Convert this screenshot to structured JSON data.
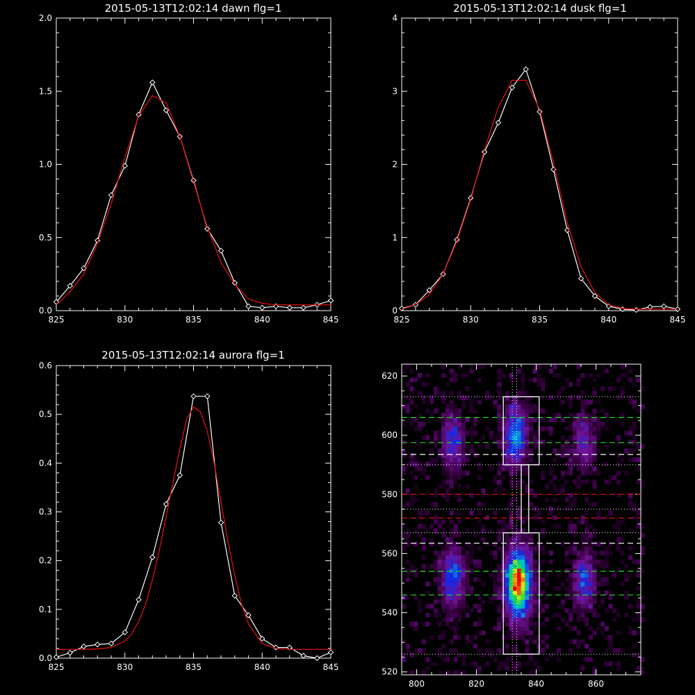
{
  "colors": {
    "background": "#000000",
    "axes": "#ffffff",
    "data_line": "#ffffff",
    "fit_line": "#dd1111",
    "box": "#ffffff",
    "green_dash": "#22dd22",
    "red_dash": "#dd1111",
    "white_dash": "#ffffff"
  },
  "chart_data": [
    {
      "type": "line",
      "title": "2015-05-13T12:02:14 dawn flg=1",
      "xlim": [
        825,
        845
      ],
      "ylim": [
        0.0,
        2.0
      ],
      "xticks": [
        825,
        830,
        835,
        840,
        845
      ],
      "xtick_labels": [
        "825",
        "830",
        "835",
        "840",
        "845"
      ],
      "yticks": [
        0.0,
        0.5,
        1.0,
        1.5,
        2.0
      ],
      "ytick_labels": [
        "0.0",
        "0.5",
        "1.0",
        "1.5",
        "2.0"
      ],
      "series": [
        {
          "x": [
            825,
            826,
            827,
            828,
            829,
            830,
            831,
            832,
            833,
            834,
            835,
            836,
            837,
            838,
            839,
            840,
            841,
            842,
            843,
            844,
            845
          ],
          "y": [
            0.06,
            0.17,
            0.29,
            0.48,
            0.79,
            0.99,
            1.34,
            1.56,
            1.37,
            1.19,
            0.89,
            0.56,
            0.41,
            0.19,
            0.03,
            0.02,
            0.03,
            0.02,
            0.02,
            0.04,
            0.07
          ],
          "marker": "diamond"
        },
        {
          "x": [
            825,
            826,
            827,
            828,
            829,
            830,
            831,
            832,
            833,
            834,
            835,
            836,
            837,
            838,
            839,
            840,
            841,
            842,
            843,
            844,
            845
          ],
          "y": [
            0.04,
            0.13,
            0.25,
            0.46,
            0.73,
            1.05,
            1.33,
            1.47,
            1.42,
            1.19,
            0.88,
            0.57,
            0.33,
            0.18,
            0.08,
            0.05,
            0.04,
            0.04,
            0.04,
            0.04,
            0.04
          ],
          "role": "fit"
        }
      ]
    },
    {
      "type": "line",
      "title": "2015-05-13T12:02:14 dusk flg=1",
      "xlim": [
        825,
        845
      ],
      "ylim": [
        0,
        4
      ],
      "xticks": [
        825,
        830,
        835,
        840,
        845
      ],
      "xtick_labels": [
        "825",
        "830",
        "835",
        "840",
        "845"
      ],
      "yticks": [
        0,
        1,
        2,
        3,
        4
      ],
      "ytick_labels": [
        "0",
        "1",
        "2",
        "3",
        "4"
      ],
      "series": [
        {
          "x": [
            825,
            826,
            827,
            828,
            829,
            830,
            831,
            832,
            833,
            834,
            835,
            836,
            837,
            838,
            839,
            840,
            841,
            842,
            843,
            844,
            845
          ],
          "y": [
            0.03,
            0.08,
            0.28,
            0.5,
            0.97,
            1.54,
            2.17,
            2.57,
            3.05,
            3.3,
            2.72,
            1.93,
            1.1,
            0.44,
            0.2,
            0.06,
            0.02,
            0.01,
            0.05,
            0.06,
            0.02
          ],
          "marker": "diamond"
        },
        {
          "x": [
            825,
            826,
            827,
            828,
            829,
            830,
            831,
            832,
            833,
            834,
            835,
            836,
            837,
            838,
            839,
            840,
            841,
            842,
            843,
            844,
            845
          ],
          "y": [
            0.02,
            0.08,
            0.22,
            0.5,
            0.95,
            1.52,
            2.2,
            2.78,
            3.15,
            3.15,
            2.75,
            2.02,
            1.2,
            0.6,
            0.25,
            0.08,
            0.03,
            0.02,
            0.02,
            0.02,
            0.02
          ],
          "role": "fit"
        }
      ]
    },
    {
      "type": "line",
      "title": "2015-05-13T12:02:14 aurora flg=1",
      "xlim": [
        825,
        845
      ],
      "ylim": [
        0.0,
        0.6
      ],
      "xticks": [
        825,
        830,
        835,
        840,
        845
      ],
      "xtick_labels": [
        "825",
        "830",
        "835",
        "840",
        "845"
      ],
      "yticks": [
        0.0,
        0.1,
        0.2,
        0.3,
        0.4,
        0.5,
        0.6
      ],
      "ytick_labels": [
        "0.0",
        "0.1",
        "0.2",
        "0.3",
        "0.4",
        "0.5",
        "0.6"
      ],
      "series": [
        {
          "x": [
            825,
            826,
            827,
            828,
            829,
            830,
            831,
            832,
            833,
            834,
            835,
            836,
            837,
            838,
            839,
            840,
            841,
            842,
            843,
            844,
            845
          ],
          "y": [
            0.002,
            0.011,
            0.024,
            0.028,
            0.03,
            0.053,
            0.12,
            0.207,
            0.316,
            0.375,
            0.537,
            0.537,
            0.278,
            0.128,
            0.088,
            0.04,
            0.022,
            0.022,
            0.005,
            0.0,
            0.012
          ],
          "marker": "diamond"
        },
        {
          "x": [
            825,
            826,
            827,
            828,
            829,
            830,
            830.5,
            831,
            831.5,
            832,
            832.5,
            833,
            833.5,
            834,
            834.5,
            835,
            835.5,
            836,
            836.5,
            837,
            837.5,
            838,
            838.5,
            839,
            840,
            841,
            842,
            843,
            844,
            845
          ],
          "y": [
            0.018,
            0.018,
            0.018,
            0.019,
            0.022,
            0.035,
            0.05,
            0.075,
            0.11,
            0.16,
            0.22,
            0.29,
            0.36,
            0.43,
            0.49,
            0.515,
            0.505,
            0.465,
            0.4,
            0.32,
            0.24,
            0.17,
            0.11,
            0.07,
            0.03,
            0.02,
            0.018,
            0.018,
            0.018,
            0.018
          ],
          "role": "fit"
        }
      ]
    },
    {
      "type": "heatmap",
      "title": "",
      "xlim": [
        795,
        875
      ],
      "ylim": [
        519,
        624
      ],
      "xticks": [
        800,
        820,
        840,
        860
      ],
      "xtick_labels": [
        "800",
        "820",
        "840",
        "860"
      ],
      "yticks": [
        520,
        540,
        560,
        580,
        600,
        620
      ],
      "ytick_labels": [
        "520",
        "540",
        "560",
        "580",
        "600",
        "620"
      ],
      "blobs": [
        {
          "x": 812,
          "y": 598,
          "sx": 2.6,
          "sy": 6.5,
          "amp": 0.42
        },
        {
          "x": 833,
          "y": 600,
          "sx": 2.8,
          "sy": 7.0,
          "amp": 0.55
        },
        {
          "x": 856,
          "y": 598,
          "sx": 2.6,
          "sy": 6.5,
          "amp": 0.32
        },
        {
          "x": 812,
          "y": 552,
          "sx": 2.6,
          "sy": 7.0,
          "amp": 0.5
        },
        {
          "x": 834,
          "y": 550,
          "sx": 3.0,
          "sy": 8.0,
          "amp": 1.0
        },
        {
          "x": 856,
          "y": 551,
          "sx": 2.6,
          "sy": 7.0,
          "amp": 0.4
        }
      ],
      "vertical_dotted_x": [
        832,
        833.5
      ],
      "horizontal_dotted_y": [
        613,
        590,
        575,
        567,
        526
      ],
      "green_dashed_y": [
        606,
        597.5,
        554,
        546
      ],
      "white_dashed_y": [
        593.5,
        563.5
      ],
      "red_dashed_y": [
        580,
        572
      ],
      "boxes": [
        {
          "x0": 829,
          "x1": 841,
          "y0": 590,
          "y1": 613
        },
        {
          "x0": 835,
          "x1": 837.5,
          "y0": 567,
          "y1": 590
        },
        {
          "x0": 829,
          "x1": 841,
          "y0": 526,
          "y1": 567
        }
      ]
    }
  ]
}
